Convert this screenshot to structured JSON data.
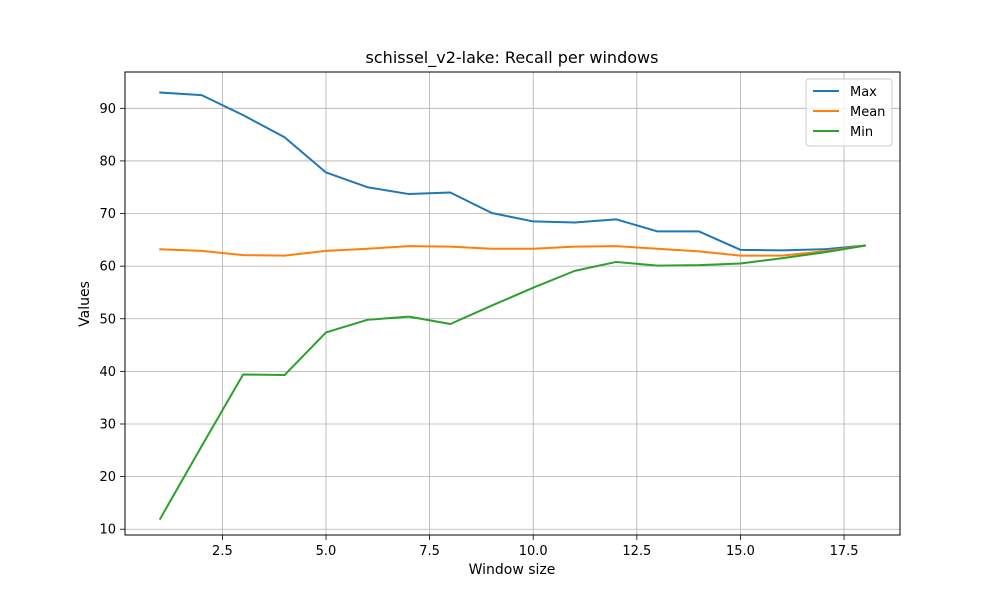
{
  "chart_data": {
    "type": "line",
    "title": "schissel_v2-lake: Recall per windows",
    "xlabel": "Window size",
    "ylabel": "Values",
    "xlim": [
      0.15,
      18.85
    ],
    "ylim": [
      8.9,
      96.9
    ],
    "xticks": [
      2.5,
      5.0,
      7.5,
      10.0,
      12.5,
      15.0,
      17.5
    ],
    "xtick_labels": [
      "2.5",
      "5.0",
      "7.5",
      "10.0",
      "12.5",
      "15.0",
      "17.5"
    ],
    "yticks": [
      10,
      20,
      30,
      40,
      50,
      60,
      70,
      80,
      90
    ],
    "ytick_labels": [
      "10",
      "20",
      "30",
      "40",
      "50",
      "60",
      "70",
      "80",
      "90"
    ],
    "grid": true,
    "legend_position": "top-right",
    "x": [
      1,
      2,
      3,
      4,
      5,
      6,
      7,
      8,
      9,
      10,
      11,
      12,
      13,
      14,
      15,
      16,
      17,
      18
    ],
    "series": [
      {
        "name": "Max",
        "color": "#1f77b4",
        "values": [
          93.0,
          92.5,
          88.7,
          84.5,
          77.8,
          75.0,
          73.7,
          74.0,
          70.1,
          68.5,
          68.3,
          68.9,
          66.6,
          66.6,
          63.1,
          63.0,
          63.2,
          63.9
        ]
      },
      {
        "name": "Mean",
        "color": "#ff7f0e",
        "values": [
          63.2,
          62.9,
          62.1,
          62.0,
          62.9,
          63.3,
          63.8,
          63.7,
          63.3,
          63.3,
          63.7,
          63.8,
          63.3,
          62.8,
          62.0,
          62.0,
          62.8,
          63.9
        ]
      },
      {
        "name": "Min",
        "color": "#2ca02c",
        "values": [
          12.0,
          25.8,
          39.4,
          39.3,
          47.4,
          49.8,
          50.4,
          49.0,
          52.5,
          55.9,
          59.1,
          60.8,
          60.1,
          60.2,
          60.5,
          61.5,
          62.6,
          63.9
        ]
      }
    ]
  }
}
